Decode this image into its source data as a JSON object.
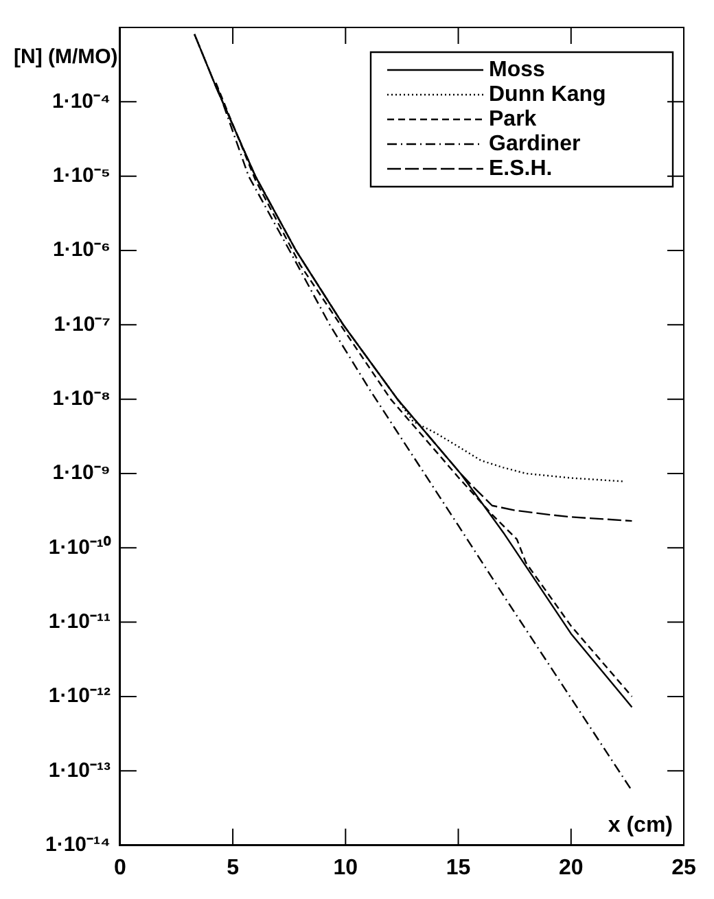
{
  "chart_data": {
    "type": "line",
    "xlabel": "x (cm)",
    "ylabel": "[N] (M/MO)",
    "log": "y",
    "grid": false,
    "legend": "top right",
    "marker": "none",
    "xlim": [
      0,
      25
    ],
    "xticks": [
      0,
      5,
      10,
      15,
      20,
      25
    ],
    "ylim": [
      1e-14,
      0.001
    ],
    "yticks": [
      {
        "value": 1e-14,
        "label": "1·10⁻¹⁴"
      },
      {
        "value": 1e-13,
        "label": "1·10⁻¹³"
      },
      {
        "value": 1e-12,
        "label": "1·10⁻¹²"
      },
      {
        "value": 1e-11,
        "label": "1·10⁻¹¹"
      },
      {
        "value": 1e-10,
        "label": "1·10⁻¹⁰"
      },
      {
        "value": 1e-09,
        "label": "1·10⁻⁹"
      },
      {
        "value": 1e-08,
        "label": "1·10⁻⁸"
      },
      {
        "value": 1e-07,
        "label": "1·10⁻⁷"
      },
      {
        "value": 1e-06,
        "label": "1·10⁻⁶"
      },
      {
        "value": 1e-05,
        "label": "1·10⁻⁵"
      },
      {
        "value": 0.0001,
        "label": "1·10⁻⁴"
      }
    ],
    "series": [
      {
        "name": "Moss",
        "color": "#000000",
        "line_style": "solid",
        "x": [
          3.3,
          4.25,
          6,
          7.8,
          9.9,
          12.3,
          15.1,
          17,
          20,
          22.7
        ],
        "values": [
          0.00081,
          0.00016,
          1e-05,
          1e-06,
          1e-07,
          1e-08,
          1e-09,
          1.6e-10,
          7e-12,
          7.2e-13
        ]
      },
      {
        "name": "Dunn Kang",
        "color": "#000000",
        "line_style": "dotted",
        "x": [
          3.3,
          4.25,
          6,
          7.8,
          9.9,
          12.3,
          13,
          14,
          15,
          16,
          17,
          18,
          20,
          22.4
        ],
        "values": [
          0.00081,
          0.00016,
          1e-05,
          1e-06,
          1e-07,
          1e-08,
          5e-09,
          3.5e-09,
          2.3e-09,
          1.5e-09,
          1.2e-09,
          1e-09,
          8.7e-10,
          7.8e-10
        ]
      },
      {
        "name": "Park",
        "color": "#000000",
        "line_style": "dashed",
        "x": [
          4.25,
          6,
          8,
          10,
          12,
          14,
          15,
          16.5,
          17.6,
          18,
          20,
          22.7
        ],
        "values": [
          0.00018,
          8.9e-06,
          6.3e-07,
          7.9e-08,
          1e-08,
          2e-09,
          8.9e-10,
          2.8e-10,
          1.3e-10,
          6.3e-11,
          8.9e-12,
          1e-12
        ]
      },
      {
        "name": "Gardiner",
        "color": "#000000",
        "line_style": "dashdot",
        "x": [
          4.3,
          5.7,
          7.7,
          9.3,
          11.1,
          12.2,
          15,
          17,
          20,
          22.7
        ],
        "values": [
          0.00016,
          1e-05,
          7.9e-07,
          1e-07,
          1.3e-08,
          4e-09,
          2e-10,
          2.3e-11,
          9.5e-13,
          5.4e-14
        ]
      },
      {
        "name": "E.S.H.",
        "color": "#000000",
        "line_style": "longdash",
        "x": [
          3.3,
          4.25,
          6,
          7.8,
          9.9,
          12.3,
          15.1,
          15.6,
          16.5,
          17.5,
          19,
          20,
          22.7
        ],
        "values": [
          0.00081,
          0.00016,
          1e-05,
          1e-06,
          1e-07,
          1e-08,
          1e-09,
          6.9e-10,
          3.7e-10,
          3.2e-10,
          2.8e-10,
          2.6e-10,
          2.3e-10
        ]
      }
    ]
  }
}
